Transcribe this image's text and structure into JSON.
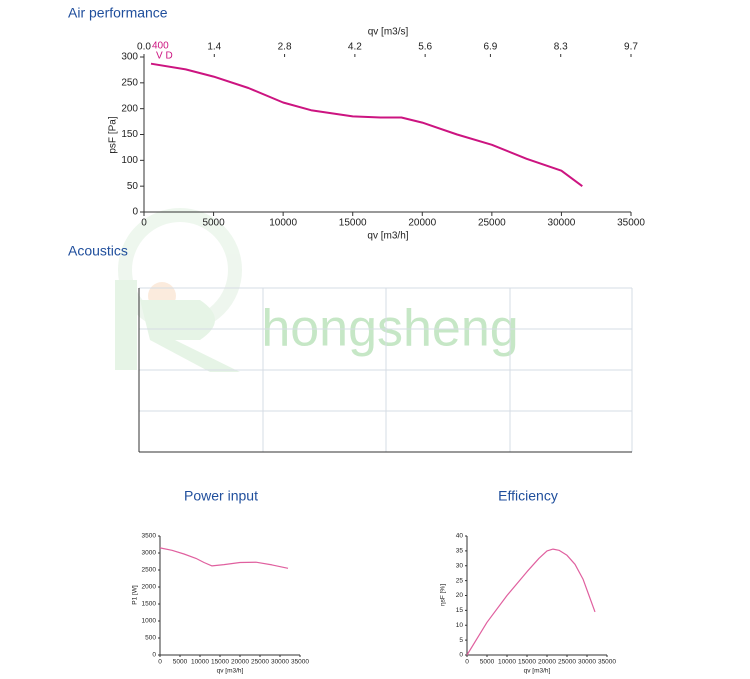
{
  "chart_data": [
    {
      "type": "line",
      "title": "Air performance",
      "x_label": "qv [m3/h]",
      "y_label": "psF [Pa]",
      "x2_label": "qv [m3/s]",
      "annotations": [
        "400",
        "V D"
      ],
      "x": [
        500,
        3000,
        5000,
        7500,
        10000,
        12000,
        15000,
        17000,
        18500,
        20000,
        22500,
        25000,
        27500,
        30000,
        31500
      ],
      "series": [
        {
          "color": "#cc1480",
          "values": [
            287,
            276,
            262,
            240,
            212,
            197,
            185,
            183,
            183,
            173,
            150,
            130,
            103,
            80,
            50
          ]
        }
      ],
      "xlim": [
        0,
        35000
      ],
      "xticks": [
        0,
        5000,
        10000,
        15000,
        20000,
        25000,
        30000,
        35000
      ],
      "x2lim": [
        0,
        9.7
      ],
      "x2ticks": [
        {
          "value": 0,
          "label": "0.0"
        },
        1.4,
        2.8,
        4.2,
        5.6,
        6.9,
        8.3,
        9.7
      ],
      "ylim": [
        0,
        300
      ],
      "yticks": [
        0,
        50,
        100,
        150,
        200,
        250,
        300
      ],
      "grid": false
    },
    {
      "type": "line",
      "title": "Acoustics",
      "watermark": "hongsheng",
      "grid": true
    },
    {
      "type": "line",
      "title": "Power input",
      "x_label": "qv [m3/h]",
      "y_label": "P1 [W]",
      "x": [
        0,
        3000,
        6000,
        9000,
        11000,
        13000,
        16000,
        20000,
        24000,
        28000,
        32000
      ],
      "series": [
        {
          "color": "#e0609f",
          "values": [
            3150,
            3080,
            2970,
            2840,
            2720,
            2620,
            2660,
            2720,
            2730,
            2650,
            2550
          ]
        }
      ],
      "xlim": [
        0,
        35000
      ],
      "xticks": [
        0,
        5000,
        10000,
        15000,
        20000,
        25000,
        30000,
        35000
      ],
      "ylim": [
        0,
        3500
      ],
      "yticks": [
        0,
        500,
        1000,
        1500,
        2000,
        2500,
        3000,
        3500
      ],
      "grid": false
    },
    {
      "type": "line",
      "title": "Efficiency",
      "x_label": "qv [m3/h]",
      "y_label": "ηsF [%]",
      "x": [
        0,
        5000,
        10000,
        15000,
        18000,
        20000,
        21500,
        23000,
        25000,
        27000,
        29000,
        30500,
        32000
      ],
      "series": [
        {
          "color": "#e0609f",
          "values": [
            0,
            11,
            20,
            28,
            32.5,
            35,
            35.6,
            35.2,
            33.5,
            30.5,
            25.5,
            20,
            14.5
          ]
        }
      ],
      "xlim": [
        0,
        35000
      ],
      "xticks": [
        0,
        5000,
        10000,
        15000,
        20000,
        25000,
        30000,
        35000
      ],
      "ylim": [
        0,
        40
      ],
      "yticks": [
        0,
        5,
        10,
        15,
        20,
        25,
        30,
        35,
        40
      ],
      "grid": false
    }
  ]
}
